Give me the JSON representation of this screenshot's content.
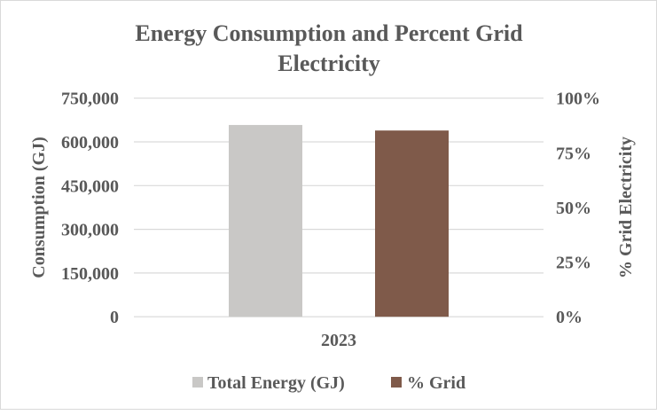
{
  "chart_data": {
    "type": "bar",
    "title": "Energy Consumption and Percent Grid Electricity",
    "title_lines": [
      "Energy Consumption and Percent Grid",
      "Electricity"
    ],
    "categories": [
      "2023"
    ],
    "series": [
      {
        "name": "Total Energy (GJ)",
        "values": [
          658000
        ],
        "axis": "left",
        "color": "#c9c8c6"
      },
      {
        "name": "% Grid",
        "values": [
          85.2
        ],
        "axis": "right",
        "color": "#7f5a4a"
      }
    ],
    "ylabel": "Consumption  (GJ)",
    "ylabel_right": "% Grid Electricity",
    "ylim": [
      0,
      750000
    ],
    "ylim_right": [
      0,
      100
    ],
    "yticks": [
      "0",
      "150,000",
      "300,000",
      "450,000",
      "600,000",
      "750,000"
    ],
    "yticks_right": [
      "0%",
      "25%",
      "50%",
      "75%",
      "100%"
    ],
    "grid": true,
    "legend": "bottom"
  }
}
